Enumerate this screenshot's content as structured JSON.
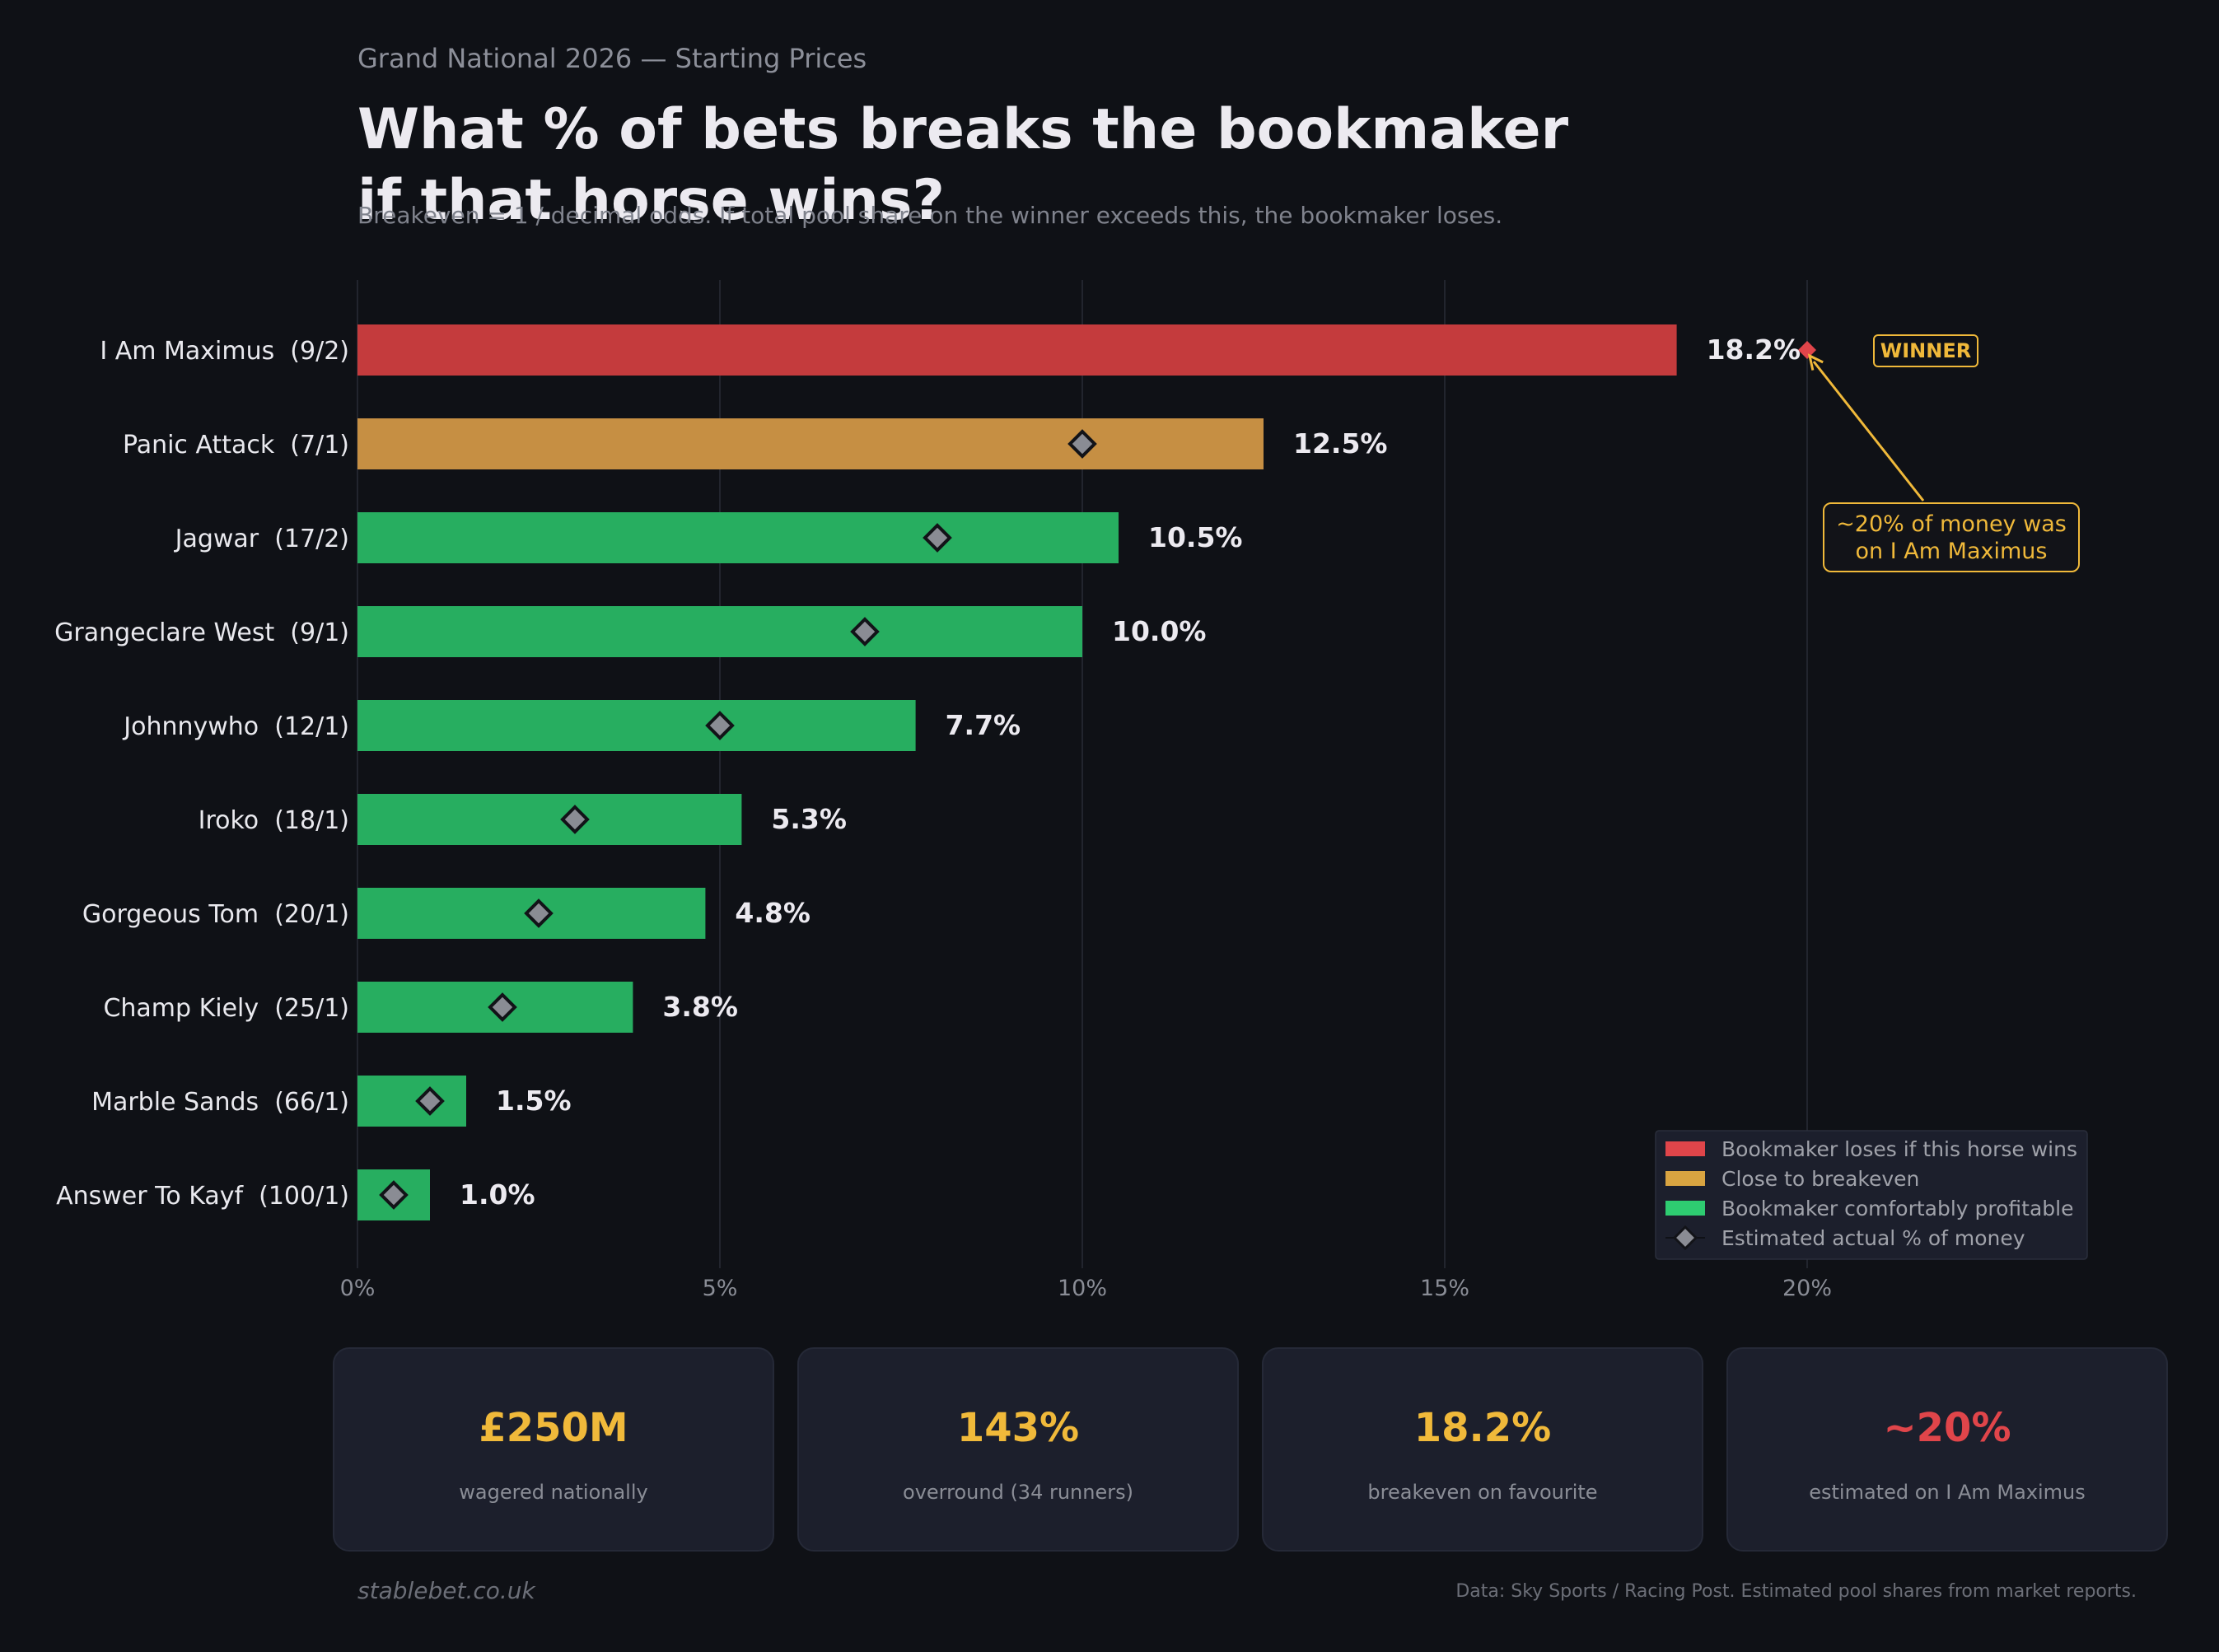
{
  "header": {
    "supertitle": "Grand National 2026 — Starting Prices",
    "title_line1": "What % of bets breaks the bookmaker",
    "title_line2": "if that horse wins?",
    "subtitle": "Breakeven = 1 / decimal odds. If total pool share on the winner exceeds this, the bookmaker loses."
  },
  "chart_data": {
    "type": "bar",
    "orientation": "horizontal",
    "categories": [
      "I Am Maximus  (9/2)",
      "Panic Attack  (7/1)",
      "Jagwar  (17/2)",
      "Grangeclare West  (9/1)",
      "Johnnywho  (12/1)",
      "Iroko  (18/1)",
      "Gorgeous Tom  (20/1)",
      "Champ Kiely  (25/1)",
      "Marble Sands  (66/1)",
      "Answer To Kayf  (100/1)"
    ],
    "values": [
      18.2,
      12.5,
      10.5,
      10.0,
      7.7,
      5.3,
      4.8,
      3.8,
      1.5,
      1.0
    ],
    "value_labels": [
      "18.2%",
      "12.5%",
      "10.5%",
      "10.0%",
      "7.7%",
      "5.3%",
      "4.8%",
      "3.8%",
      "1.5%",
      "1.0%"
    ],
    "bar_status": [
      "loses",
      "breakeven",
      "profitable",
      "profitable",
      "profitable",
      "profitable",
      "profitable",
      "profitable",
      "profitable",
      "profitable"
    ],
    "estimated_actual": [
      20,
      10,
      8,
      7,
      5,
      3,
      2.5,
      2,
      1,
      0.5
    ],
    "x_ticks": [
      "0%",
      "5%",
      "10%",
      "15%",
      "20%"
    ],
    "x_tick_values": [
      0,
      5,
      10,
      15,
      20
    ],
    "xlim": [
      0,
      24
    ],
    "grid": "vertical",
    "legend_position": "bottom-right",
    "legend": [
      {
        "key": "loses",
        "label": "Bookmaker loses if this horse wins",
        "color": "#e0454a"
      },
      {
        "key": "breakeven",
        "label": "Close to breakeven",
        "color": "#d9a441"
      },
      {
        "key": "profitable",
        "label": "Bookmaker comfortably profitable",
        "color": "#2ecc71"
      },
      {
        "key": "marker",
        "label": "Estimated actual % of money",
        "color": "#8a8c94"
      }
    ],
    "colors": {
      "loses": "#c43b3d",
      "breakeven": "#c68f43",
      "profitable": "#27ae60",
      "marker": "#8a8c94",
      "winner_marker": "#e0454a",
      "annotation": "#f0b93a"
    },
    "winner_badge": "WINNER",
    "annotation": {
      "line1": "~20% of money was",
      "line2": "on I Am Maximus",
      "points_to_value": 20
    }
  },
  "stats": [
    {
      "value": "£250M",
      "label": "wagered nationally",
      "color": "#f0b93a"
    },
    {
      "value": "143%",
      "label": "overround (34 runners)",
      "color": "#f0b93a"
    },
    {
      "value": "18.2%",
      "label": "breakeven on favourite",
      "color": "#f0b93a"
    },
    {
      "value": "~20%",
      "label": "estimated on I Am Maximus",
      "color": "#e0454a"
    }
  ],
  "footer": {
    "site": "stablebet.co.uk",
    "source": "Data: Sky Sports / Racing Post. Estimated pool shares from market reports."
  }
}
